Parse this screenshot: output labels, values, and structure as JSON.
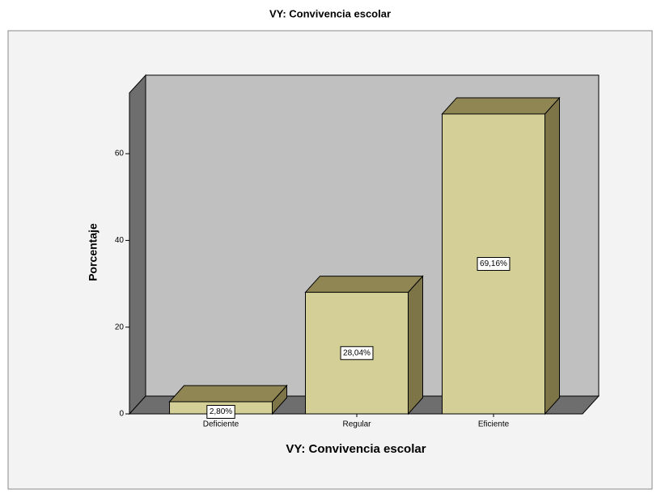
{
  "chart_data": {
    "type": "bar3d",
    "title": "VY: Convivencia escolar",
    "x_label": "VY: Convivencia escolar",
    "y_label": "Porcentaje",
    "categories": [
      "Deficiente",
      "Regular",
      "Eficiente"
    ],
    "values": [
      2.8,
      28.04,
      69.16
    ],
    "value_labels": [
      "2,80%",
      "28,04%",
      "69,16%"
    ],
    "color": "#d4cf96",
    "ylim": [
      0,
      74
    ],
    "yticks": [
      0,
      20,
      40,
      60
    ]
  }
}
